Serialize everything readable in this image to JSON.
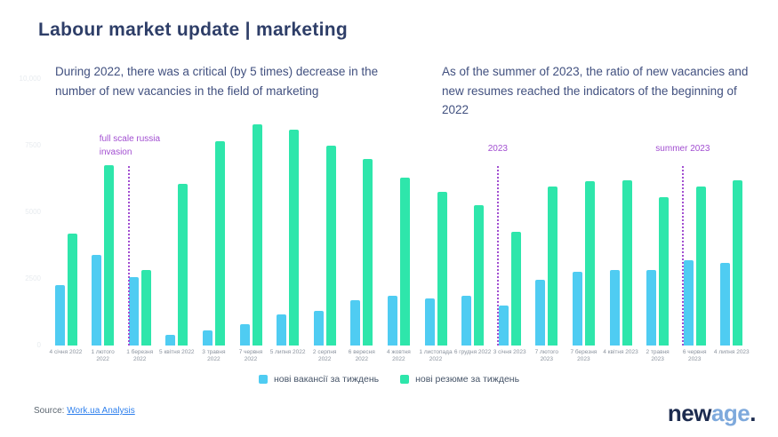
{
  "slide": {
    "title": "Labour market update | marketing",
    "left_note": "During 2022, there was a critical (by 5 times) decrease in the number of new vacancies in the field of marketing",
    "right_note": "As of the summer of 2023, the ratio of new vacancies and new resumes reached the indicators of the beginning of 2022",
    "source_label": "Source: ",
    "source_link": "Work.ua Analysis",
    "logo": {
      "part1": "new",
      "part2": "age",
      "part3": "."
    }
  },
  "chart_data": {
    "type": "bar",
    "title": "",
    "xlabel": "",
    "ylabel": "",
    "ylim": [
      0,
      10000
    ],
    "grid": false,
    "legend_position": "bottom",
    "categories": [
      "4 січня 2022",
      "1 лютого\n2022",
      "1 березня\n2022",
      "5 квітня 2022",
      "3 травня\n2022",
      "7 червня\n2022",
      "5 липня 2022",
      "2 серпня\n2022",
      "6 вересня\n2022",
      "4 жовтня\n2022",
      "1 листопада\n2022",
      "6 грудня 2022",
      "3 січня 2023",
      "7 лютого\n2023",
      "7 березня\n2023",
      "4 квітня 2023",
      "2 травня\n2023",
      "6 червня\n2023",
      "4 липня 2023"
    ],
    "yticks": [
      {
        "value": 0,
        "label": "0"
      },
      {
        "value": 2500,
        "label": "2500"
      },
      {
        "value": 5000,
        "label": "5000"
      },
      {
        "value": 7500,
        "label": "7500"
      },
      {
        "value": 10000,
        "label": "10,000"
      }
    ],
    "series": [
      {
        "name": "нові вакансії за тиждень",
        "color": "#4fccf2",
        "values": [
          2250,
          3400,
          2550,
          400,
          550,
          800,
          1150,
          1300,
          1700,
          1850,
          1750,
          1850,
          1500,
          2450,
          2750,
          2850,
          2850,
          3200,
          3100
        ]
      },
      {
        "name": "нові резюме за тиждень",
        "color": "#2ee6ab",
        "values": [
          4200,
          6750,
          2850,
          6050,
          7650,
          8300,
          8100,
          7500,
          7000,
          6300,
          5750,
          5250,
          4250,
          5950,
          6150,
          6200,
          5550,
          5950,
          6200
        ]
      }
    ],
    "annotations": [
      {
        "text": "full scale russia\ninvasion",
        "between": [
          "1 лютого 2022",
          "1 березня 2022"
        ],
        "t": 1.7,
        "align": "left",
        "dx": -33,
        "label_y": 150
      },
      {
        "text": "2023",
        "between": [
          "6 грудня 2022",
          "3 січня 2023"
        ],
        "t": 11.68,
        "align": "center",
        "dx": 0,
        "label_y": 161
      },
      {
        "text": "summer 2023",
        "between": [
          "2 травня 2023",
          "6 червня 2023"
        ],
        "t": 16.68,
        "align": "center",
        "dx": 0,
        "label_y": 161
      }
    ]
  }
}
